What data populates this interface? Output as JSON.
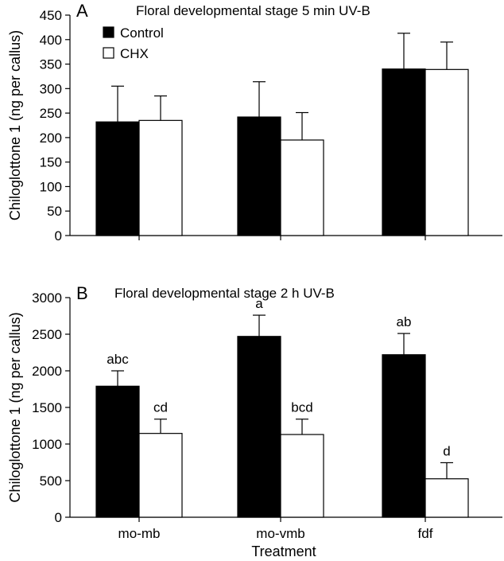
{
  "colors": {
    "control": "#000000",
    "chx": "#ffffff",
    "stroke": "#000000"
  },
  "xlabel": "Treatment",
  "legend": {
    "entries": [
      "Control",
      "CHX"
    ]
  },
  "chart_data": [
    {
      "type": "bar",
      "panel": "A",
      "title": "Floral developmental stage 5 min UV-B",
      "categories": [
        "mo-mb",
        "mo-vmb",
        "fdf"
      ],
      "series": [
        {
          "name": "Control",
          "values": [
            232,
            242,
            340
          ],
          "errors": [
            73,
            72,
            73
          ]
        },
        {
          "name": "CHX",
          "values": [
            235,
            195,
            339
          ],
          "errors": [
            50,
            56,
            56
          ]
        }
      ],
      "ylabel": "Chiloglottone 1 (ng per callus)",
      "ylim": [
        0,
        450
      ],
      "yticks": [
        0,
        50,
        100,
        150,
        200,
        250,
        300,
        350,
        400,
        450
      ],
      "show_category_labels": false,
      "legend_position": "top-left"
    },
    {
      "type": "bar",
      "panel": "B",
      "title": "Floral developmental stage 2 h UV-B",
      "categories": [
        "mo-mb",
        "mo-vmb",
        "fdf"
      ],
      "series": [
        {
          "name": "Control",
          "values": [
            1790,
            2470,
            2220
          ],
          "errors": [
            210,
            290,
            290
          ],
          "labels": [
            "abc",
            "a",
            "ab"
          ]
        },
        {
          "name": "CHX",
          "values": [
            1145,
            1130,
            525
          ],
          "errors": [
            195,
            210,
            220
          ],
          "labels": [
            "cd",
            "bcd",
            "d"
          ]
        }
      ],
      "ylabel": "Chiloglottone 1 (ng per callus)",
      "ylim": [
        0,
        3000
      ],
      "yticks": [
        0,
        500,
        1000,
        1500,
        2000,
        2500,
        3000
      ],
      "show_category_labels": true,
      "xlabel": "Treatment"
    }
  ]
}
